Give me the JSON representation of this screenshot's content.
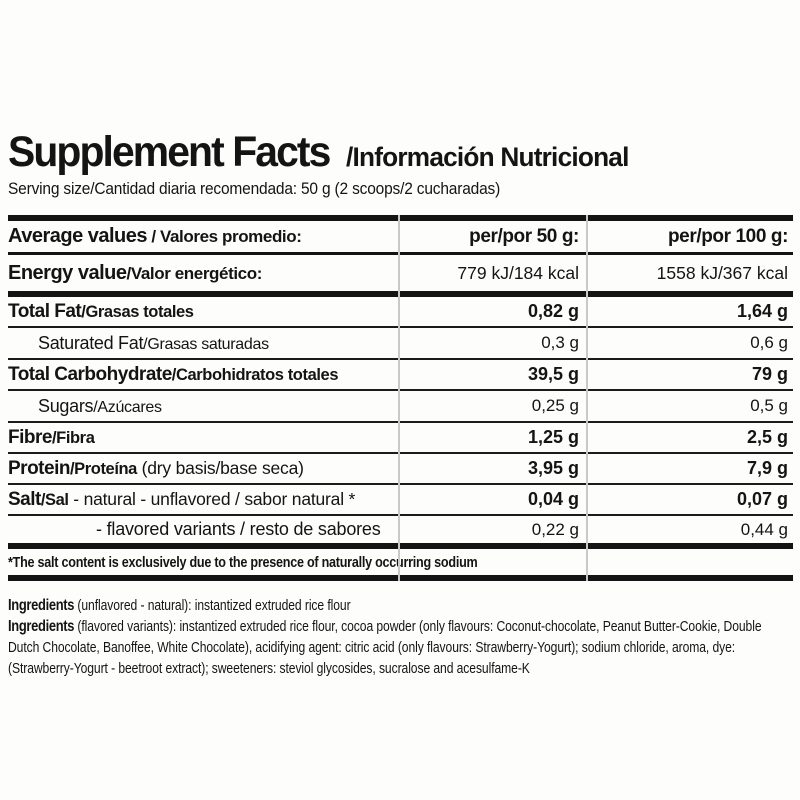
{
  "title": {
    "en": "Supplement Facts",
    "es": "/Información Nutricional"
  },
  "serving_size": "Serving size/Cantidad diaria recomendada: 50 g (2 scoops/2 cucharadas)",
  "table": {
    "header": {
      "lead": "Average values",
      "rest": " / Valores promedio:",
      "per50": "per/por 50 g:",
      "per100": "per/por 100 g:"
    },
    "rows": [
      {
        "en": "Energy value",
        "es": "/Valor energético:",
        "note": "",
        "per50": "779 kJ/184 kcal",
        "per100": "1558 kJ/367 kcal"
      },
      {
        "en": "Total Fat",
        "es": "/Grasas totales",
        "note": "",
        "per50": "0,82 g",
        "per100": "1,64 g"
      },
      {
        "en": "Saturated Fat",
        "es": "/Grasas saturadas",
        "note": "",
        "per50": "0,3 g",
        "per100": "0,6 g"
      },
      {
        "en": "Total Carbohydrate",
        "es": "/Carbohidratos totales",
        "note": "",
        "per50": "39,5 g",
        "per100": "79 g"
      },
      {
        "en": "Sugars",
        "es": "/Azúcares",
        "note": "",
        "per50": "0,25 g",
        "per100": "0,5 g"
      },
      {
        "en": "Fibre",
        "es": "/Fibra",
        "note": "",
        "per50": "1,25 g",
        "per100": "2,5 g"
      },
      {
        "en": "Protein",
        "es": "/Proteína",
        "note": " (dry basis/base seca)",
        "per50": "3,95 g",
        "per100": "7,9 g"
      },
      {
        "en": "Salt",
        "es": "/Sal",
        "note": " - natural - unflavored / sabor natural *",
        "per50": "0,04 g",
        "per100": "0,07 g"
      },
      {
        "en": "",
        "es": "",
        "note": "- flavored variants / resto de sabores",
        "per50": "0,22 g",
        "per100": "0,44 g"
      }
    ]
  },
  "footnote": "*The salt content is exclusively due to the presence of naturally occurring sodium",
  "ingredients": [
    {
      "lead": "Ingredients",
      "text": " (unflavored - natural): instantized extruded rice flour"
    },
    {
      "lead": "Ingredients",
      "text": " (flavored variants): instantized extruded rice flour, cocoa powder (only flavours: Coconut-chocolate, Peanut Butter-Cookie, Double Dutch Chocolate, Banoffee, White Chocolate), acidifying agent: citric acid (only flavours: Strawberry-Yogurt); sodium chloride, aroma, dye: (Strawberry-Yogurt - beetroot extract); sweeteners: steviol glycosides, sucralose and acesulfame-K"
    }
  ]
}
